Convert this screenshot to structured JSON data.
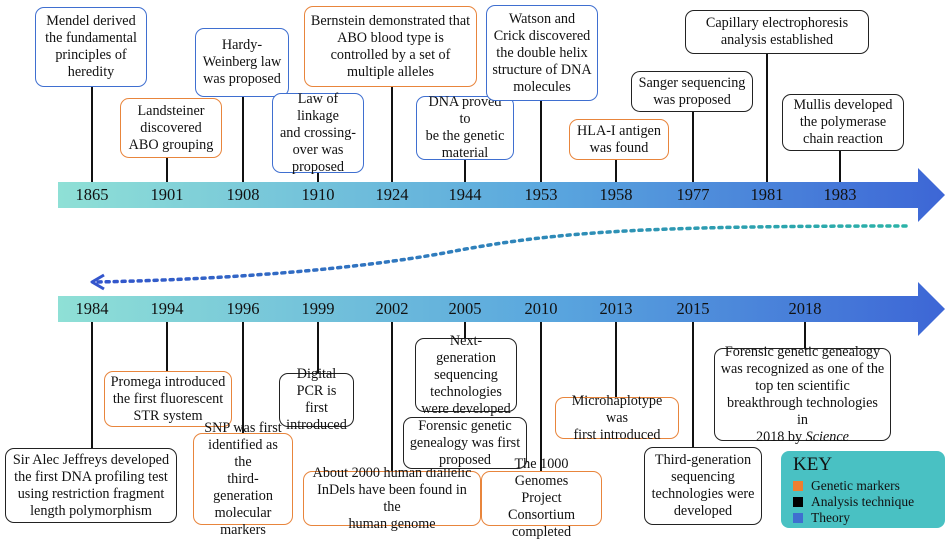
{
  "timeline_top": {
    "years": [
      "1865",
      "1901",
      "1908",
      "1910",
      "1924",
      "1944",
      "1953",
      "1958",
      "1977",
      "1981",
      "1983"
    ],
    "events": [
      {
        "year": "1865",
        "category": "theory",
        "lines": [
          "Mendel derived",
          "the fundamental",
          "principles of",
          "heredity"
        ]
      },
      {
        "year": "1901",
        "category": "genetic",
        "lines": [
          "Landsteiner",
          "discovered",
          "ABO grouping"
        ]
      },
      {
        "year": "1908",
        "category": "theory",
        "lines": [
          "Hardy-",
          "Weinberg law",
          "was proposed"
        ]
      },
      {
        "year": "1910",
        "category": "theory",
        "lines": [
          "Law of linkage",
          "and crossing-",
          "over was",
          "proposed"
        ]
      },
      {
        "year": "1924",
        "category": "genetic",
        "lines": [
          "Bernstein demonstrated that",
          "ABO blood type is",
          "controlled by a set of",
          "multiple alleles"
        ]
      },
      {
        "year": "1944",
        "category": "theory",
        "lines": [
          "DNA proved to",
          "be the genetic",
          "material"
        ]
      },
      {
        "year": "1953",
        "category": "theory",
        "lines": [
          "Watson and",
          "Crick discovered",
          "the double helix",
          "structure of DNA",
          "molecules"
        ]
      },
      {
        "year": "1958",
        "category": "genetic",
        "lines": [
          "HLA-I antigen",
          "was found"
        ]
      },
      {
        "year": "1977",
        "category": "analysis",
        "lines": [
          "Sanger sequencing",
          "was proposed"
        ]
      },
      {
        "year": "1981",
        "category": "analysis",
        "lines": [
          "Capillary electrophoresis",
          "analysis established"
        ]
      },
      {
        "year": "1983",
        "category": "analysis",
        "lines": [
          "Mullis developed",
          "the polymerase",
          "chain reaction"
        ]
      }
    ]
  },
  "timeline_bottom": {
    "years": [
      "1984",
      "1994",
      "1996",
      "1999",
      "2002",
      "2005",
      "2010",
      "2013",
      "2015",
      "2018"
    ],
    "events": [
      {
        "year": "1984",
        "category": "analysis",
        "lines": [
          "Sir Alec Jeffreys developed",
          "the first DNA profiling test",
          "using restriction fragment",
          "length polymorphism"
        ]
      },
      {
        "year": "1994",
        "category": "genetic",
        "lines": [
          "Promega introduced",
          "the first fluorescent",
          "STR system"
        ]
      },
      {
        "year": "1996",
        "category": "genetic",
        "lines": [
          "SNP was first",
          "identified as the",
          "third-generation",
          "molecular",
          "markers"
        ]
      },
      {
        "year": "1999",
        "category": "analysis",
        "lines": [
          "Digital",
          "PCR is first",
          "introduced"
        ]
      },
      {
        "year": "2002",
        "category": "genetic",
        "lines": [
          "About 2000 human diallelic",
          "InDels have been found in the",
          "human genome"
        ]
      },
      {
        "year": "2005",
        "category": "analysis",
        "lines": [
          "Next-generation",
          "sequencing",
          "technologies",
          "were developed"
        ]
      },
      {
        "year": "2005",
        "category": "analysis",
        "lines": [
          "Forensic genetic",
          "genealogy was first",
          "proposed"
        ]
      },
      {
        "year": "2010",
        "category": "genetic",
        "lines": [
          "The 1000 Genomes",
          "Project Consortium",
          "completed"
        ]
      },
      {
        "year": "2013",
        "category": "genetic",
        "lines": [
          "Microhaplotype was",
          "first introduced"
        ]
      },
      {
        "year": "2015",
        "category": "analysis",
        "lines": [
          "Third-generation",
          "sequencing",
          "technologies were",
          "developed"
        ]
      },
      {
        "year": "2018",
        "category": "analysis",
        "lines": [
          "Forensic genetic genealogy",
          "was recognized as one of the",
          "top ten scientific",
          "breakthrough technologies in",
          "2018 by Science"
        ]
      }
    ]
  },
  "key": {
    "title": "KEY",
    "items": [
      {
        "label": "Genetic markers",
        "color": "#f07f2f"
      },
      {
        "label": "Analysis technique",
        "color": "#000000"
      },
      {
        "label": "Theory",
        "color": "#3f6fd0"
      }
    ]
  },
  "colors": {
    "genetic": "#e8853c",
    "analysis": "#222222",
    "theory": "#3f6fd0",
    "arrow_start": "#7fd9d3",
    "arrow_end": "#3e6ed8",
    "connector": "#2bb3a8",
    "connector_end": "#3355cc"
  }
}
